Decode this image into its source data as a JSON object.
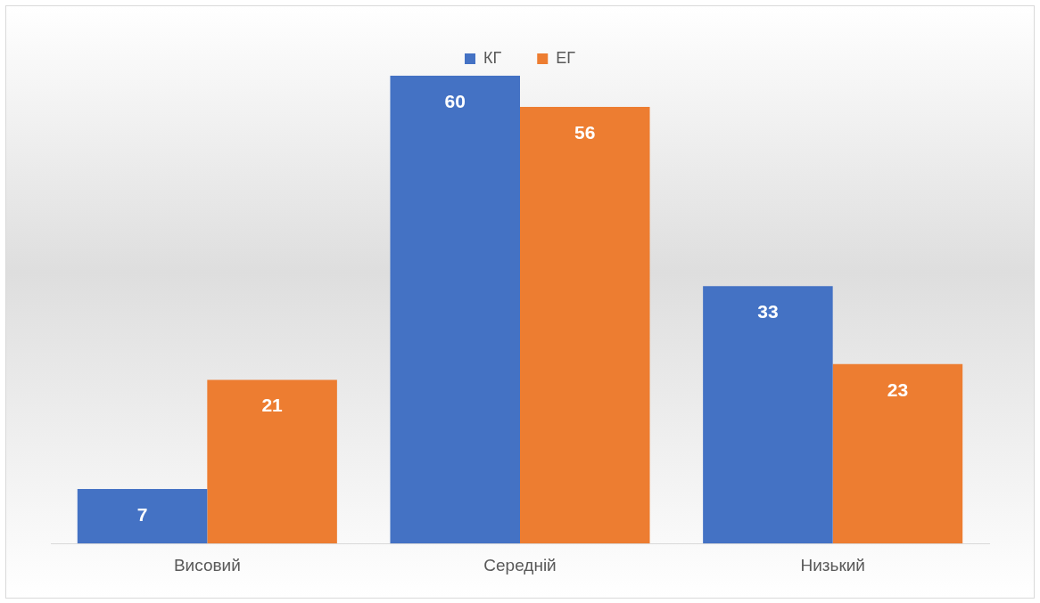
{
  "chart_data": {
    "type": "bar",
    "categories": [
      "Висовий",
      "Середній",
      "Низький"
    ],
    "series": [
      {
        "name": "КГ",
        "color": "#4472c4",
        "values": [
          7,
          60,
          33
        ]
      },
      {
        "name": "ЕГ",
        "color": "#ed7d31",
        "values": [
          21,
          56,
          23
        ]
      }
    ],
    "data_labels": true,
    "legend": "top",
    "grid": false
  }
}
